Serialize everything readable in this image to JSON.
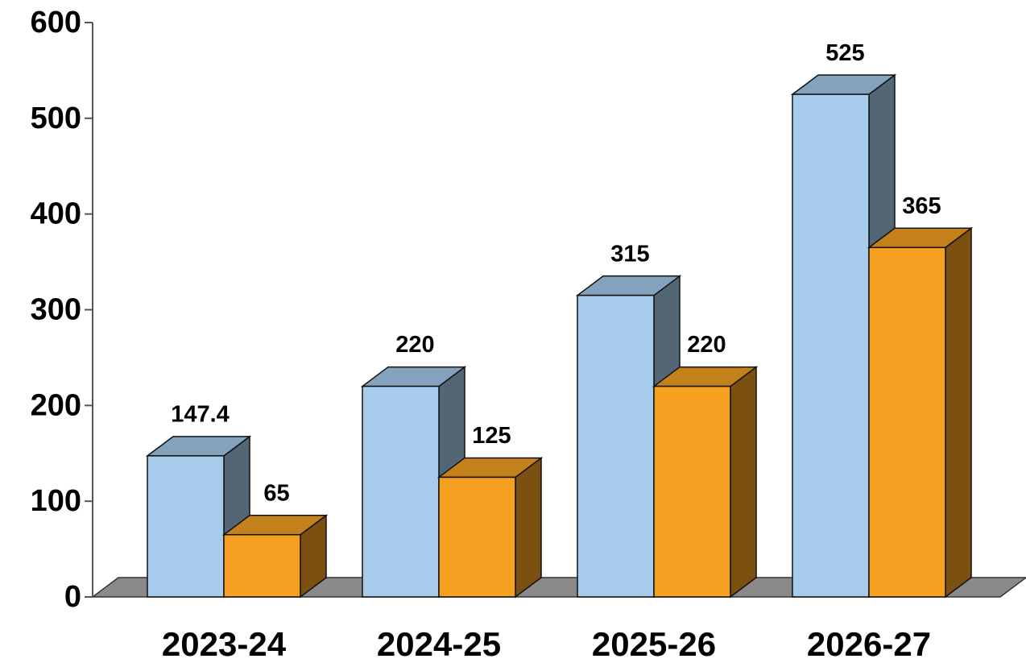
{
  "chart_data": {
    "type": "bar",
    "categories": [
      "2023-24",
      "2024-25",
      "2025-26",
      "2026-27"
    ],
    "series": [
      {
        "color": "#a6cbeb",
        "values": [
          147.4,
          220,
          315,
          525
        ]
      },
      {
        "color": "#f5a020",
        "values": [
          65,
          125,
          220,
          365
        ]
      }
    ],
    "ylim": [
      0,
      600
    ],
    "yticks": [
      0,
      100,
      200,
      300,
      400,
      500,
      600
    ],
    "grid": false
  }
}
